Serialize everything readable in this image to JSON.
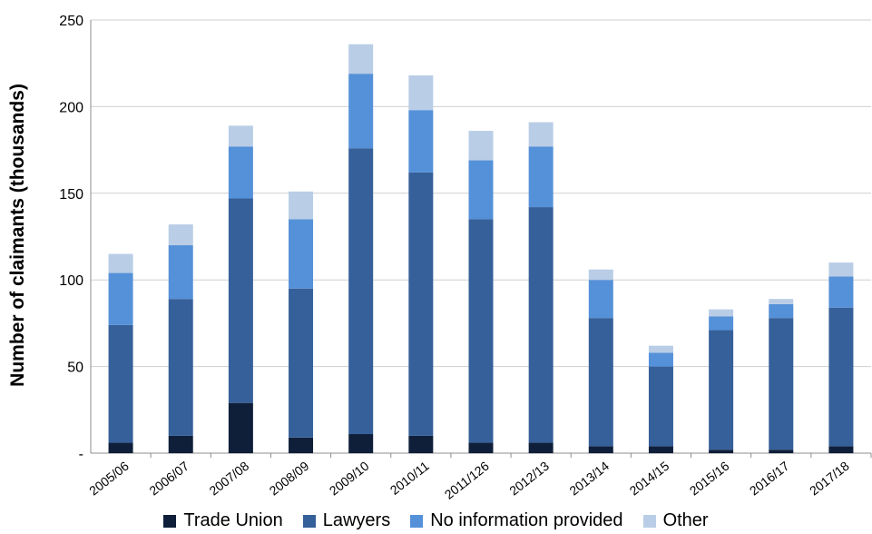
{
  "chart_data": {
    "type": "bar",
    "stacked": true,
    "ylabel": "Number of claimants (thousands)",
    "ylim": [
      0,
      250
    ],
    "yticks": [
      "-",
      "50",
      "100",
      "150",
      "200",
      "250"
    ],
    "grid": true,
    "legend_position": "bottom",
    "categories": [
      "2005/06",
      "2006/07",
      "2007/08",
      "2008/09",
      "2009/10",
      "2010/11",
      "2011/126",
      "2012/13",
      "2013/14",
      "2014/15",
      "2015/16",
      "2016/17",
      "2017/18"
    ],
    "series": [
      {
        "name": "Trade Union",
        "color": "#0f1f3a",
        "values": [
          6,
          10,
          29,
          9,
          11,
          10,
          6,
          6,
          4,
          4,
          2,
          2,
          4
        ]
      },
      {
        "name": "Lawyers",
        "color": "#36609a",
        "values": [
          68,
          79,
          118,
          86,
          165,
          152,
          129,
          136,
          74,
          46,
          69,
          76,
          80
        ]
      },
      {
        "name": "No information provided",
        "color": "#5591d8",
        "values": [
          30,
          31,
          30,
          40,
          43,
          36,
          34,
          35,
          22,
          8,
          8,
          8,
          18
        ]
      },
      {
        "name": "Other",
        "color": "#b9cde6",
        "values": [
          11,
          12,
          12,
          16,
          17,
          20,
          17,
          14,
          6,
          4,
          4,
          3,
          8
        ]
      }
    ]
  }
}
